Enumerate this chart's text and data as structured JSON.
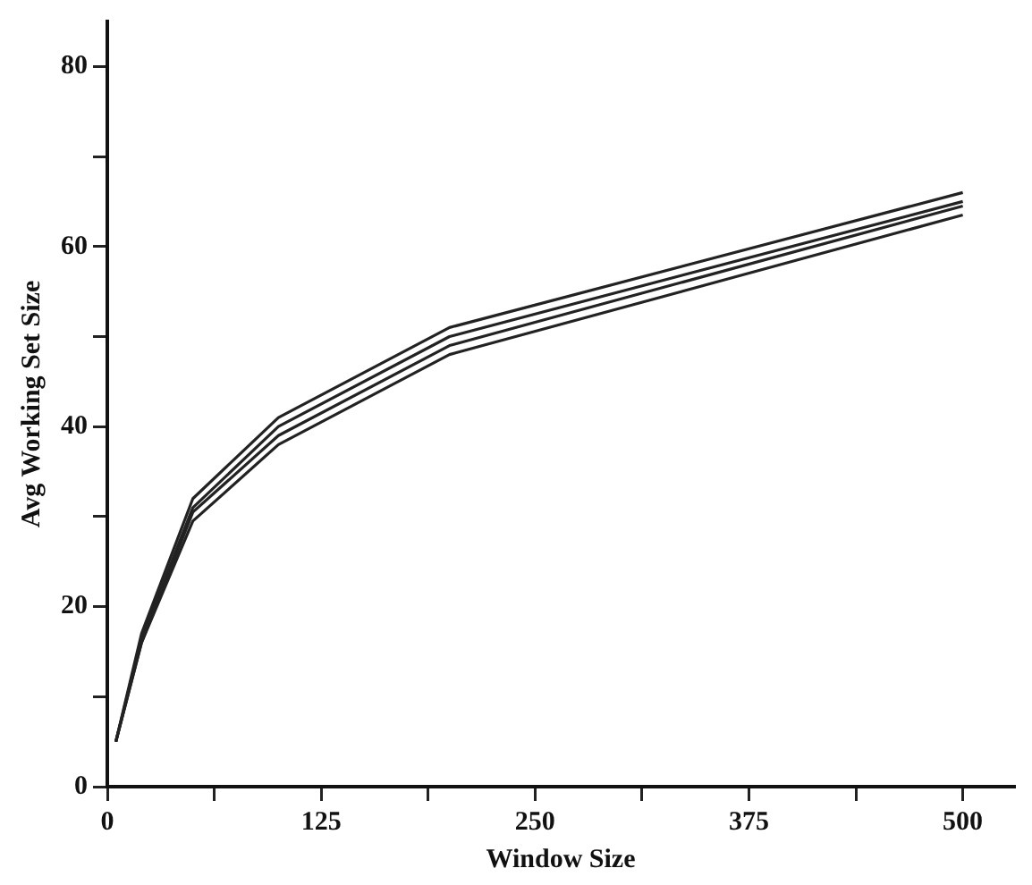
{
  "chart_data": {
    "type": "line",
    "xlabel": "Window Size",
    "ylabel": "Avg Working Set Size",
    "x": [
      5,
      20,
      50,
      100,
      200,
      500
    ],
    "series": [
      {
        "color": "#222222",
        "values": [
          5,
          17,
          32,
          41,
          51,
          66
        ]
      },
      {
        "color": "#222222",
        "values": [
          5,
          16.5,
          31,
          40,
          50,
          65
        ]
      },
      {
        "color": "#222222",
        "values": [
          5,
          16,
          30.5,
          39,
          49,
          64.5
        ]
      },
      {
        "color": "#222222",
        "values": [
          5,
          16,
          29.5,
          38,
          48,
          63.5
        ]
      }
    ],
    "xlim": [
      0,
      530
    ],
    "xticks": [
      0,
      {
        "value": 62.5,
        "label": null
      },
      125,
      {
        "value": 187.5,
        "label": null
      },
      250,
      {
        "value": 312.5,
        "label": null
      },
      375,
      {
        "value": 437.5,
        "label": null
      },
      500
    ],
    "ylim": [
      0,
      85
    ],
    "yticks": [
      0,
      {
        "value": 10,
        "label": null
      },
      20,
      {
        "value": 30,
        "label": null
      },
      40,
      {
        "value": 50,
        "label": null
      },
      60,
      {
        "value": 70,
        "label": null
      },
      80
    ],
    "grid": false,
    "legend": false,
    "marker": "none",
    "line_style": "solid"
  }
}
